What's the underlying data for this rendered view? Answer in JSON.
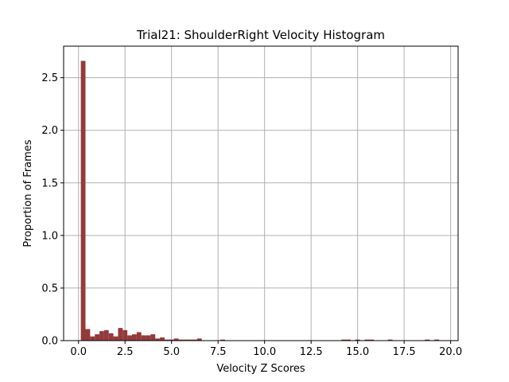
{
  "chart_data": {
    "type": "bar",
    "title": "Trial21: ShoulderRight Velocity Histogram",
    "xlabel": "Velocity Z Scores",
    "ylabel": "Proportion of Frames",
    "xlim": [
      -0.8,
      20.4
    ],
    "ylim": [
      0,
      2.8
    ],
    "xticks": [
      0.0,
      2.5,
      5.0,
      7.5,
      10.0,
      12.5,
      15.0,
      17.5,
      20.0
    ],
    "xtick_labels": [
      "0.0",
      "2.5",
      "5.0",
      "7.5",
      "10.0",
      "12.5",
      "15.0",
      "17.5",
      "20.0"
    ],
    "yticks": [
      0.0,
      0.5,
      1.0,
      1.5,
      2.0,
      2.5
    ],
    "ytick_labels": [
      "0.0",
      "0.5",
      "1.0",
      "1.5",
      "2.0",
      "2.5"
    ],
    "grid": true,
    "bar_color": "#943a3a",
    "bin_width": 0.25,
    "bins": [
      {
        "x": 0.25,
        "value": 2.66
      },
      {
        "x": 0.5,
        "value": 0.11
      },
      {
        "x": 0.75,
        "value": 0.04
      },
      {
        "x": 1.0,
        "value": 0.06
      },
      {
        "x": 1.25,
        "value": 0.09
      },
      {
        "x": 1.5,
        "value": 0.1
      },
      {
        "x": 1.75,
        "value": 0.07
      },
      {
        "x": 2.0,
        "value": 0.04
      },
      {
        "x": 2.25,
        "value": 0.12
      },
      {
        "x": 2.5,
        "value": 0.1
      },
      {
        "x": 2.75,
        "value": 0.05
      },
      {
        "x": 3.0,
        "value": 0.06
      },
      {
        "x": 3.25,
        "value": 0.08
      },
      {
        "x": 3.5,
        "value": 0.05
      },
      {
        "x": 3.75,
        "value": 0.05
      },
      {
        "x": 4.0,
        "value": 0.06
      },
      {
        "x": 4.25,
        "value": 0.02
      },
      {
        "x": 4.5,
        "value": 0.03
      },
      {
        "x": 4.75,
        "value": 0.01
      },
      {
        "x": 5.0,
        "value": 0.01
      },
      {
        "x": 5.25,
        "value": 0.02
      },
      {
        "x": 5.5,
        "value": 0.01
      },
      {
        "x": 5.75,
        "value": 0.01
      },
      {
        "x": 6.0,
        "value": 0.01
      },
      {
        "x": 6.25,
        "value": 0.01
      },
      {
        "x": 6.5,
        "value": 0.02
      },
      {
        "x": 7.75,
        "value": 0.01
      },
      {
        "x": 14.25,
        "value": 0.01
      },
      {
        "x": 14.5,
        "value": 0.01
      },
      {
        "x": 15.0,
        "value": 0.01
      },
      {
        "x": 15.5,
        "value": 0.01
      },
      {
        "x": 15.75,
        "value": 0.01
      },
      {
        "x": 16.75,
        "value": 0.01
      },
      {
        "x": 18.75,
        "value": 0.01
      },
      {
        "x": 19.25,
        "value": 0.01
      }
    ]
  }
}
